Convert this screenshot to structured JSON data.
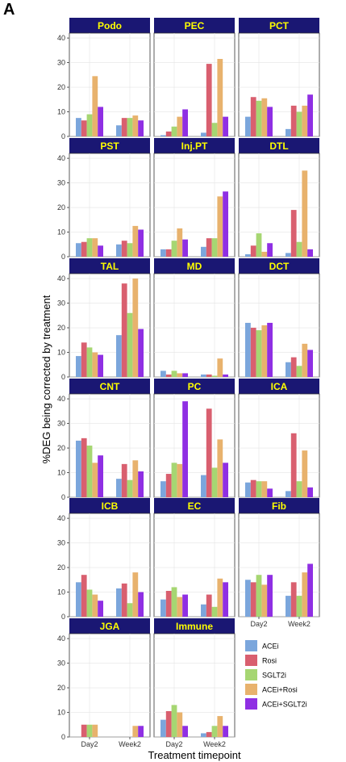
{
  "panel_label": "A",
  "chart_data": {
    "type": "bar",
    "title": "",
    "xlabel": "Treatment timepoint",
    "ylabel": "%DEG being corrected by treatment",
    "categories": [
      "Day2",
      "Week2"
    ],
    "series_names": [
      "ACEi",
      "Rosi",
      "SGLT2i",
      "ACEi+Rosi",
      "ACEi+SGLT2i"
    ],
    "series_colors": [
      "#7ba6dc",
      "#d95f6f",
      "#a6d672",
      "#e8b26d",
      "#8f2fe3"
    ],
    "yticks": [
      0,
      10,
      20,
      30,
      40
    ],
    "ylim": [
      0,
      42
    ],
    "grid": true,
    "legend_position": "bottom-right",
    "strip_background": "#1a1773",
    "strip_text_color": "#ffff00",
    "facets": [
      {
        "name": "Podo",
        "values": {
          "Day2": [
            7.5,
            6.5,
            9,
            24.5,
            12
          ],
          "Week2": [
            4.5,
            7.5,
            7.5,
            8.5,
            6.5
          ]
        }
      },
      {
        "name": "PEC",
        "values": {
          "Day2": [
            0.5,
            2,
            4,
            8,
            11
          ],
          "Week2": [
            1.5,
            29.5,
            5.5,
            31.5,
            8
          ]
        }
      },
      {
        "name": "PCT",
        "values": {
          "Day2": [
            8,
            16,
            14.5,
            15.5,
            12
          ],
          "Week2": [
            3,
            12.5,
            10,
            12.5,
            17
          ]
        }
      },
      {
        "name": "PST",
        "values": {
          "Day2": [
            5.5,
            6,
            7.5,
            7.5,
            4.5
          ],
          "Week2": [
            5,
            6.5,
            5.5,
            12.5,
            11
          ]
        }
      },
      {
        "name": "Inj.PT",
        "values": {
          "Day2": [
            3,
            3,
            6.5,
            11.5,
            7
          ],
          "Week2": [
            4,
            7.5,
            7.5,
            24.5,
            26.5
          ]
        }
      },
      {
        "name": "DTL",
        "values": {
          "Day2": [
            1,
            4.5,
            9.5,
            2,
            5.5
          ],
          "Week2": [
            1.5,
            19,
            6,
            35,
            3
          ]
        }
      },
      {
        "name": "TAL",
        "values": {
          "Day2": [
            8.5,
            14,
            12,
            10,
            9
          ],
          "Week2": [
            17,
            38,
            26,
            40,
            19.5
          ]
        }
      },
      {
        "name": "MD",
        "values": {
          "Day2": [
            2.5,
            1,
            2.5,
            1.5,
            1.5
          ],
          "Week2": [
            1,
            1,
            0.5,
            7.5,
            1
          ]
        }
      },
      {
        "name": "DCT",
        "values": {
          "Day2": [
            22,
            20,
            19,
            21,
            22
          ],
          "Week2": [
            6,
            8,
            4.5,
            13.5,
            11
          ]
        }
      },
      {
        "name": "CNT",
        "values": {
          "Day2": [
            23,
            24,
            21,
            14,
            17
          ],
          "Week2": [
            7.5,
            13.5,
            7,
            15,
            10.5
          ]
        }
      },
      {
        "name": "PC",
        "values": {
          "Day2": [
            6.5,
            9.5,
            14,
            13.5,
            39
          ],
          "Week2": [
            9,
            36,
            12,
            23.5,
            14
          ]
        }
      },
      {
        "name": "ICA",
        "values": {
          "Day2": [
            6,
            7,
            6.5,
            6.5,
            3.5
          ],
          "Week2": [
            2.5,
            26,
            6.5,
            19,
            4
          ]
        }
      },
      {
        "name": "ICB",
        "values": {
          "Day2": [
            14,
            17,
            11,
            9,
            6.5
          ],
          "Week2": [
            11.5,
            13.5,
            5.5,
            18,
            10
          ]
        }
      },
      {
        "name": "EC",
        "values": {
          "Day2": [
            7,
            10.5,
            12,
            8,
            9
          ],
          "Week2": [
            5,
            9,
            4,
            15.5,
            14
          ]
        }
      },
      {
        "name": "Fib",
        "values": {
          "Day2": [
            15,
            14,
            17,
            13,
            17
          ],
          "Week2": [
            8.5,
            14,
            8.5,
            18,
            21.5
          ]
        }
      },
      {
        "name": "JGA",
        "values": {
          "Day2": [
            0,
            5,
            5,
            5,
            0
          ],
          "Week2": [
            0,
            0,
            0,
            4.5,
            4.5
          ]
        }
      },
      {
        "name": "Immune",
        "values": {
          "Day2": [
            7,
            10.5,
            13,
            10,
            4.5
          ],
          "Week2": [
            1.5,
            2,
            4.5,
            8.5,
            4.5
          ]
        }
      }
    ]
  }
}
